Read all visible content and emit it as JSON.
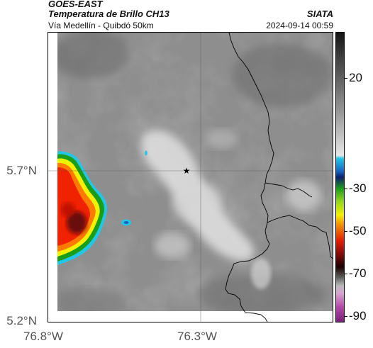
{
  "header": {
    "satellite": "GOES-EAST",
    "product": "Temperatura de Brillo CH13",
    "organization": "SIATA",
    "region": "Vía Medellín - Quibdó 50km",
    "datetime": "2024-09-14 00:59"
  },
  "map": {
    "lat_ticks": [
      "5.7°N",
      "5.2°N"
    ],
    "lon_ticks": [
      "76.8°W",
      "76.3°W"
    ],
    "marker_icon": "star-icon",
    "colorbar_ticks": [
      "20",
      "-30",
      "-50",
      "-70",
      "-90"
    ],
    "colors": {
      "cold_cloud_core": "#e41e00",
      "cold_cloud_edge": "#f3f100",
      "cyan_ring": "#22c6e8",
      "border_line": "#000000"
    }
  }
}
